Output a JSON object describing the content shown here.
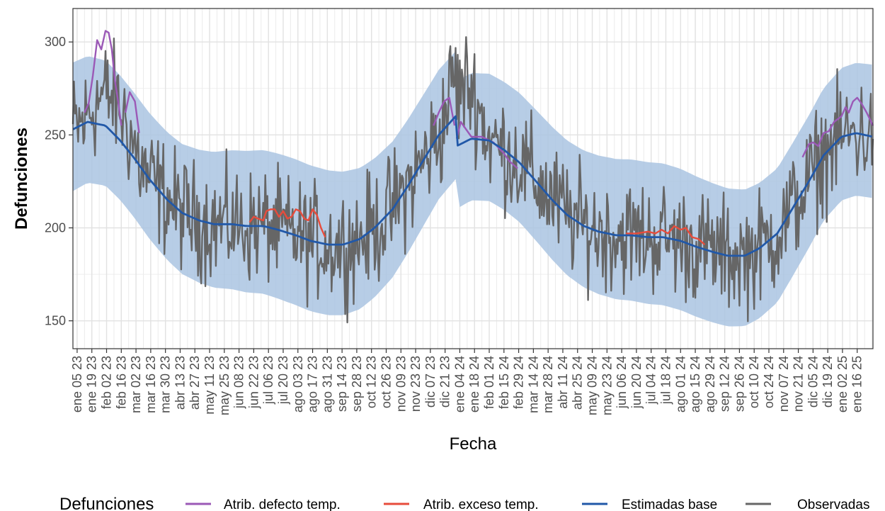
{
  "chart_data": {
    "type": "line",
    "xlabel": "Fecha",
    "ylabel": "Defunciones",
    "ylim": [
      135,
      318
    ],
    "x_range": [
      "2023-01-01",
      "2025-01-31"
    ],
    "y_ticks": [
      150,
      200,
      250,
      300
    ],
    "x_tick_labels": [
      "ene 05 23",
      "ene 19 23",
      "feb 02 23",
      "feb 16 23",
      "mar 02 23",
      "mar 16 23",
      "mar 30 23",
      "abr 13 23",
      "abr 27 23",
      "may 11 23",
      "may 25 23",
      "jun 08 23",
      "jun 22 23",
      "jul 06 23",
      "jul 20 23",
      "ago 03 23",
      "ago 17 23",
      "ago 31 23",
      "sep 14 23",
      "sep 28 23",
      "oct 12 23",
      "oct 26 23",
      "nov 09 23",
      "nov 23 23",
      "dic 07 23",
      "dic 21 23",
      "ene 04 24",
      "ene 18 24",
      "feb 01 24",
      "feb 15 24",
      "feb 29 24",
      "mar 14 24",
      "mar 28 24",
      "abr 11 24",
      "abr 25 24",
      "may 09 24",
      "may 23 24",
      "jun 06 24",
      "jun 20 24",
      "jul 04 24",
      "jul 18 24",
      "ago 01 24",
      "ago 15 24",
      "ago 29 24",
      "sep 12 24",
      "sep 26 24",
      "oct 10 24",
      "oct 24 24",
      "nov 07 24",
      "nov 21 24",
      "dic 05 24",
      "dic 19 24",
      "ene 02 25",
      "ene 16 25"
    ],
    "grid": true,
    "legend_position": "bottom",
    "legend_title": "Defunciones",
    "colors": {
      "band": "#aac4e2",
      "defecto": "#9b59b6",
      "exceso": "#e74c3c",
      "base": "#2158a8",
      "observadas": "#666666",
      "grid": "#ebebeb"
    },
    "series": [
      {
        "name": "Estimadas base",
        "key": "base",
        "x": [
          "2023-01-01",
          "2023-01-15",
          "2023-02-01",
          "2023-02-15",
          "2023-03-01",
          "2023-03-15",
          "2023-04-01",
          "2023-04-15",
          "2023-05-01",
          "2023-05-15",
          "2023-06-01",
          "2023-06-15",
          "2023-07-01",
          "2023-07-15",
          "2023-08-01",
          "2023-08-15",
          "2023-09-01",
          "2023-09-15",
          "2023-10-01",
          "2023-10-15",
          "2023-11-01",
          "2023-11-15",
          "2023-12-01",
          "2023-12-15",
          "2023-12-31",
          "2024-01-01",
          "2024-01-15",
          "2024-02-01",
          "2024-02-15",
          "2024-03-01",
          "2024-03-15",
          "2024-04-01",
          "2024-04-15",
          "2024-05-01",
          "2024-05-15",
          "2024-06-01",
          "2024-06-15",
          "2024-07-01",
          "2024-07-15",
          "2024-08-01",
          "2024-08-15",
          "2024-09-01",
          "2024-09-15",
          "2024-10-01",
          "2024-10-15",
          "2024-11-01",
          "2024-11-15",
          "2024-12-01",
          "2024-12-15",
          "2025-01-01",
          "2025-01-15",
          "2025-01-31"
        ],
        "y": [
          253,
          257,
          255,
          247,
          237,
          226,
          215,
          208,
          204,
          202,
          202,
          201,
          201,
          199,
          196,
          193,
          191,
          191,
          194,
          200,
          210,
          222,
          237,
          250,
          260,
          244,
          248,
          247,
          242,
          235,
          226,
          215,
          207,
          201,
          198,
          196,
          196,
          195,
          195,
          193,
          190,
          187,
          185,
          185,
          189,
          197,
          210,
          225,
          239,
          249,
          251,
          249
        ]
      },
      {
        "name": "Atrib. defecto temp.",
        "key": "defecto",
        "segments": [
          {
            "x": [
              "2023-01-12",
              "2023-01-16",
              "2023-01-20",
              "2023-01-24",
              "2023-01-28",
              "2023-02-01",
              "2023-02-04",
              "2023-02-07",
              "2023-02-10",
              "2023-02-13",
              "2023-02-16"
            ],
            "y": [
              262,
              267,
              282,
              301,
              296,
              306,
              305,
              296,
              279,
              268,
              255
            ]
          },
          {
            "x": [
              "2023-02-20",
              "2023-02-24",
              "2023-03-01",
              "2023-03-05"
            ],
            "y": [
              262,
              273,
              268,
              251
            ]
          },
          {
            "x": [
              "2023-12-10",
              "2023-12-15",
              "2023-12-20",
              "2023-12-25",
              "2023-12-30"
            ],
            "y": [
              255,
              262,
              268,
              270,
              255
            ]
          },
          {
            "x": [
              "2024-01-01",
              "2024-01-05",
              "2024-01-10",
              "2024-01-15",
              "2024-01-25",
              "2024-02-05",
              "2024-02-15",
              "2024-02-20",
              "2024-02-28"
            ],
            "y": [
              248,
              257,
              253,
              249,
              249,
              246,
              240,
              236,
              232
            ]
          },
          {
            "x": [
              "2024-11-25",
              "2024-12-01",
              "2024-12-05",
              "2024-12-10",
              "2024-12-15",
              "2024-12-20",
              "2024-12-25",
              "2025-01-01",
              "2025-01-05",
              "2025-01-08",
              "2025-01-12",
              "2025-01-16",
              "2025-01-20",
              "2025-01-25",
              "2025-01-31"
            ],
            "y": [
              238,
              245,
              246,
              244,
              251,
              252,
              257,
              260,
              265,
              262,
              268,
              270,
              267,
              262,
              255
            ]
          }
        ]
      },
      {
        "name": "Atrib. exceso temp.",
        "key": "exceso",
        "segments": [
          {
            "x": [
              "2023-06-18",
              "2023-06-22",
              "2023-06-26",
              "2023-07-01",
              "2023-07-04",
              "2023-07-08",
              "2023-07-12",
              "2023-07-16",
              "2023-07-20",
              "2023-07-24",
              "2023-07-28",
              "2023-08-01",
              "2023-08-05",
              "2023-08-09",
              "2023-08-13",
              "2023-08-17",
              "2023-08-21",
              "2023-08-25",
              "2023-08-29"
            ],
            "y": [
              203,
              206,
              205,
              204,
              209,
              210,
              210,
              206,
              209,
              205,
              206,
              210,
              209,
              205,
              204,
              210,
              207,
              200,
              195
            ]
          },
          {
            "x": [
              "2024-06-10",
              "2024-06-20",
              "2024-07-01",
              "2024-07-08",
              "2024-07-14",
              "2024-07-20",
              "2024-07-26",
              "2024-08-01",
              "2024-08-06",
              "2024-08-12",
              "2024-08-18",
              "2024-08-24"
            ],
            "y": [
              197,
              197,
              198,
              197,
              199,
              197,
              201,
              199,
              200,
              195,
              194,
              191
            ]
          }
        ]
      }
    ]
  },
  "legend": {
    "title": "Defunciones",
    "items": [
      {
        "label": "Atrib. defecto temp.",
        "key": "defecto"
      },
      {
        "label": "Atrib. exceso temp.",
        "key": "exceso"
      },
      {
        "label": "Estimadas base",
        "key": "base"
      },
      {
        "label": "Observadas",
        "key": "observadas"
      }
    ]
  }
}
